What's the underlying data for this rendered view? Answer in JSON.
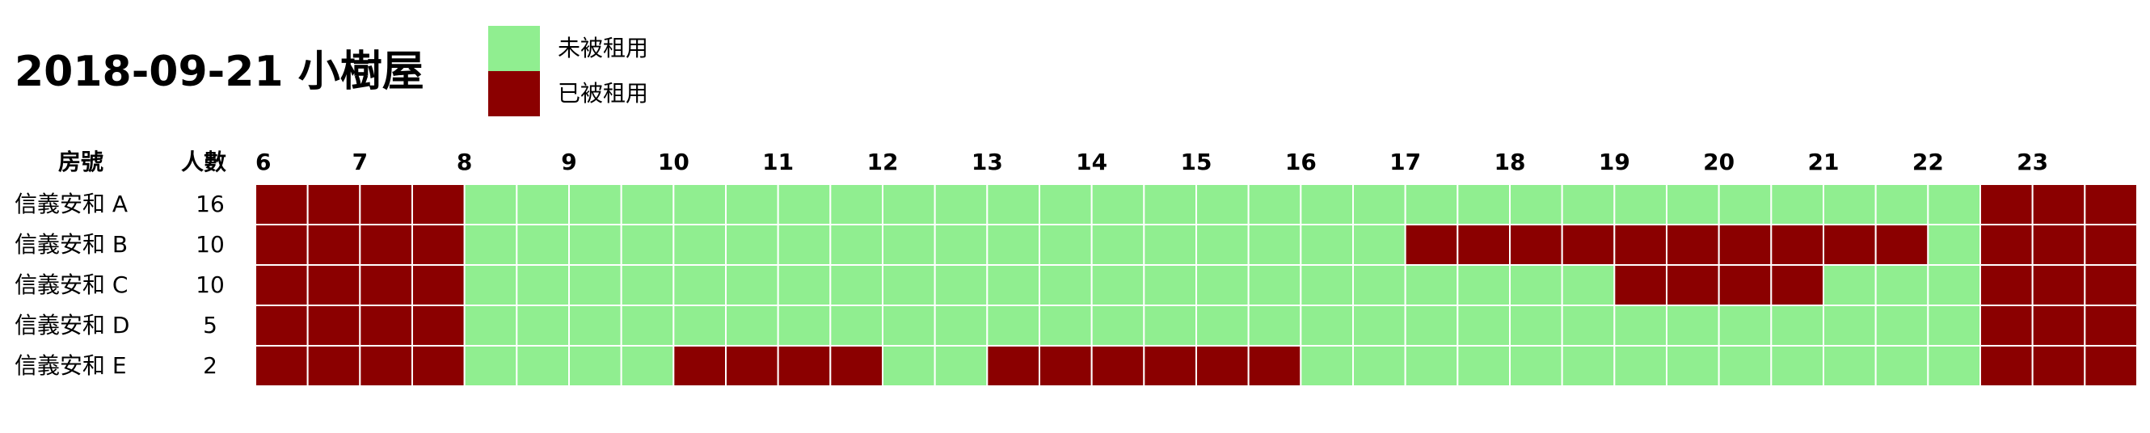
{
  "title": "2018-09-21 小樹屋",
  "legend": [
    {
      "label": "未被租用",
      "color": "#90ee90"
    },
    {
      "label": "已被租用",
      "color": "#8b0000"
    }
  ],
  "colors": {
    "available": "#90ee90",
    "booked": "#8b0000",
    "grid_line": "#ffffff"
  },
  "chart_data": {
    "type": "heatmap",
    "title": "2018-09-21 小樹屋",
    "columns_header": {
      "room": "房號",
      "people": "人數"
    },
    "hour_ticks": [
      "6",
      "7",
      "8",
      "9",
      "10",
      "11",
      "12",
      "13",
      "14",
      "15",
      "16",
      "17",
      "18",
      "19",
      "20",
      "21",
      "22",
      "23"
    ],
    "slot_start_hour": 6.0,
    "slot_end_hour": 24.0,
    "slot_minutes": 30,
    "legend": [
      "未被租用",
      "已被租用"
    ],
    "rooms": [
      {
        "name": "信義安和 A",
        "capacity": "16",
        "booked_slots": [
          0,
          1,
          2,
          3,
          33,
          34,
          35
        ]
      },
      {
        "name": "信義安和 B",
        "capacity": "10",
        "booked_slots": [
          0,
          1,
          2,
          3,
          22,
          23,
          24,
          25,
          26,
          27,
          28,
          29,
          30,
          31,
          33,
          34,
          35
        ]
      },
      {
        "name": "信義安和 C",
        "capacity": "10",
        "booked_slots": [
          0,
          1,
          2,
          3,
          26,
          27,
          28,
          29,
          33,
          34,
          35
        ]
      },
      {
        "name": "信義安和 D",
        "capacity": "5",
        "booked_slots": [
          0,
          1,
          2,
          3,
          33,
          34,
          35
        ]
      },
      {
        "name": "信義安和 E",
        "capacity": "2",
        "booked_slots": [
          0,
          1,
          2,
          3,
          8,
          9,
          10,
          11,
          14,
          15,
          16,
          17,
          18,
          19,
          33,
          34,
          35
        ]
      }
    ]
  }
}
